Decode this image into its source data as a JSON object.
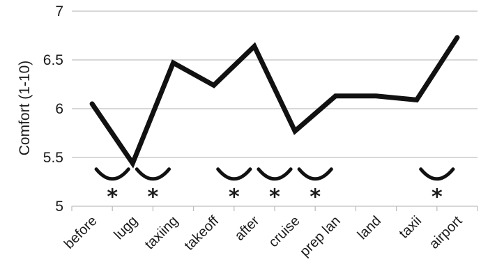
{
  "chart_data": {
    "type": "line",
    "ylabel": "Comfort (1-10)",
    "xlabel": "",
    "title": "",
    "ylim": [
      5,
      7
    ],
    "yticks": [
      5,
      5.5,
      6,
      6.5,
      7
    ],
    "ytick_labels": [
      "5",
      "5.5",
      "6",
      "6.5",
      "7"
    ],
    "grid": true,
    "categories": [
      "before",
      "lugg",
      "taxiing",
      "takeoff",
      "after",
      "cruise",
      "prep lan",
      "land",
      "taxii",
      "airport"
    ],
    "series": [
      {
        "values": [
          6.05,
          5.44,
          6.47,
          6.24,
          6.64,
          5.77,
          6.13,
          6.13,
          6.09,
          6.73
        ]
      }
    ],
    "annotations": {
      "brackets": [
        {
          "from": "before",
          "to": "lugg"
        },
        {
          "from": "lugg",
          "to": "taxiing"
        },
        {
          "from": "takeoff",
          "to": "after"
        },
        {
          "from": "after",
          "to": "cruise"
        },
        {
          "from": "cruise",
          "to": "prep lan"
        },
        {
          "from": "taxii",
          "to": "airport"
        }
      ],
      "bracket_y": 5.38,
      "star_y": 5.14,
      "star_symbol": "*"
    },
    "colors": {
      "line": "#111111",
      "grid": "#bfbfbf",
      "text": "#1a1a1a"
    }
  }
}
